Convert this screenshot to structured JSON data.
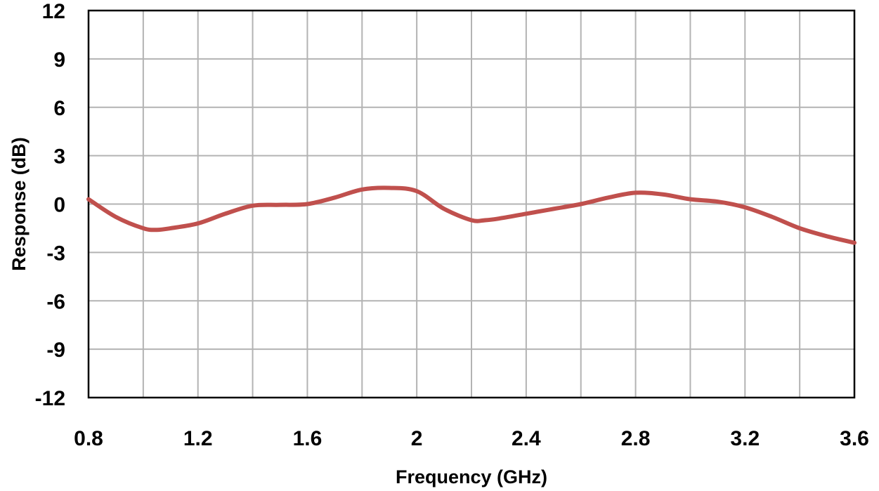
{
  "chart_data": {
    "type": "line",
    "title": "",
    "xlabel": "Frequency (GHz)",
    "ylabel": "Response (dB)",
    "xlim": [
      0.8,
      3.6
    ],
    "ylim": [
      -12,
      12
    ],
    "x_ticks": [
      0.8,
      1.2,
      1.6,
      2.0,
      2.4,
      2.8,
      3.2,
      3.6
    ],
    "x_tick_labels": [
      "0.8",
      "1.2",
      "1.6",
      "2",
      "2.4",
      "2.8",
      "3.2",
      "3.6"
    ],
    "y_ticks": [
      12,
      9,
      6,
      3,
      0,
      -3,
      -6,
      -9,
      -12
    ],
    "y_tick_labels": [
      "12",
      "9",
      "6",
      "3",
      "0",
      "-3",
      "-6",
      "-9",
      "-12"
    ],
    "x_gridlines": [
      0.8,
      1.0,
      1.2,
      1.4,
      1.6,
      1.8,
      2.0,
      2.2,
      2.4,
      2.6,
      2.8,
      3.0,
      3.2,
      3.4,
      3.6
    ],
    "y_gridlines": [
      12,
      9,
      6,
      3,
      0,
      -3,
      -6,
      -9,
      -12
    ],
    "grid": true,
    "series": [
      {
        "color": "#c0504d",
        "x": [
          0.8,
          0.9,
          1.0,
          1.05,
          1.1,
          1.2,
          1.3,
          1.4,
          1.5,
          1.6,
          1.7,
          1.8,
          1.9,
          2.0,
          2.1,
          2.2,
          2.25,
          2.3,
          2.4,
          2.5,
          2.6,
          2.7,
          2.8,
          2.9,
          3.0,
          3.1,
          3.2,
          3.3,
          3.4,
          3.5,
          3.6
        ],
        "y": [
          0.3,
          -0.8,
          -1.5,
          -1.6,
          -1.5,
          -1.2,
          -0.6,
          -0.1,
          -0.05,
          0.0,
          0.4,
          0.9,
          1.0,
          0.8,
          -0.3,
          -1.0,
          -1.0,
          -0.9,
          -0.6,
          -0.3,
          0.0,
          0.4,
          0.7,
          0.6,
          0.3,
          0.15,
          -0.2,
          -0.8,
          -1.5,
          -2.0,
          -2.4
        ]
      }
    ]
  }
}
